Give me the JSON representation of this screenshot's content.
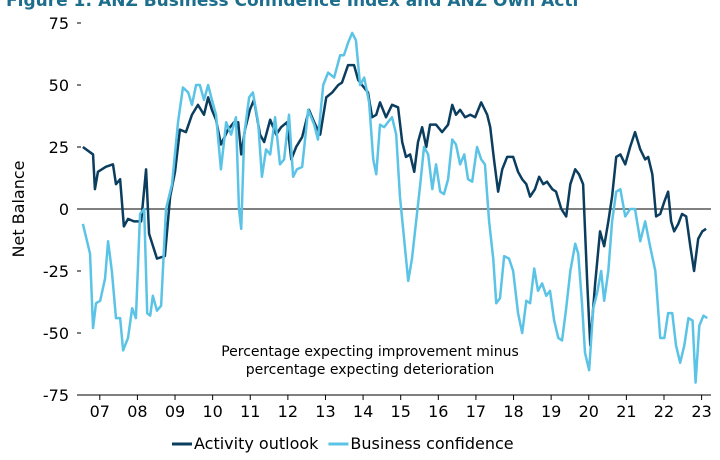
{
  "chart_data": {
    "type": "line",
    "title": "Figure 1: ANZ Business Confidence Index and ANZ Own Acti",
    "ylabel": "Net Balance",
    "annotation": [
      "Percentage expecting improvement minus",
      "percentage expecting deterioration"
    ],
    "xlim": [
      2007,
      2023.75
    ],
    "ylim": [
      -75,
      75
    ],
    "yticks": [
      -75,
      -50,
      -25,
      0,
      25,
      50,
      75
    ],
    "xticks": [
      {
        "value": 2007.5,
        "label": "07"
      },
      {
        "value": 2008.5,
        "label": "08"
      },
      {
        "value": 2009.5,
        "label": "09"
      },
      {
        "value": 2010.5,
        "label": "10"
      },
      {
        "value": 2011.5,
        "label": "11"
      },
      {
        "value": 2012.5,
        "label": "12"
      },
      {
        "value": 2013.5,
        "label": "13"
      },
      {
        "value": 2014.5,
        "label": "14"
      },
      {
        "value": 2015.5,
        "label": "15"
      },
      {
        "value": 2016.5,
        "label": "16"
      },
      {
        "value": 2017.5,
        "label": "17"
      },
      {
        "value": 2018.5,
        "label": "18"
      },
      {
        "value": 2019.5,
        "label": "19"
      },
      {
        "value": 2020.5,
        "label": "20"
      },
      {
        "value": 2021.5,
        "label": "21"
      },
      {
        "value": 2022.5,
        "label": "22"
      },
      {
        "value": 2023.5,
        "label": "23"
      }
    ],
    "legend": "bottom",
    "series": [
      {
        "name": "Activity outlook",
        "color": "#0b3d5e",
        "x": [
          2007.05,
          2007.32,
          2007.37,
          2007.45,
          2007.66,
          2007.85,
          2007.93,
          2008.04,
          2008.14,
          2008.25,
          2008.41,
          2008.6,
          2008.73,
          2008.81,
          2009.02,
          2009.23,
          2009.37,
          2009.5,
          2009.63,
          2009.79,
          2009.95,
          2010.11,
          2010.27,
          2010.38,
          2010.48,
          2010.59,
          2010.72,
          2010.91,
          2011.07,
          2011.18,
          2011.26,
          2011.36,
          2011.49,
          2011.6,
          2011.76,
          2011.87,
          2012.03,
          2012.19,
          2012.32,
          2012.48,
          2012.59,
          2012.72,
          2012.88,
          2013.06,
          2013.2,
          2013.36,
          2013.52,
          2013.68,
          2013.84,
          2013.94,
          2014.1,
          2014.26,
          2014.37,
          2014.47,
          2014.63,
          2014.74,
          2014.85,
          2014.95,
          2015.11,
          2015.27,
          2015.43,
          2015.54,
          2015.64,
          2015.75,
          2015.86,
          2015.96,
          2016.07,
          2016.18,
          2016.28,
          2016.44,
          2016.6,
          2016.76,
          2016.87,
          2016.97,
          2017.08,
          2017.21,
          2017.35,
          2017.48,
          2017.64,
          2017.8,
          2017.88,
          2017.98,
          2018.09,
          2018.2,
          2018.33,
          2018.49,
          2018.62,
          2018.73,
          2018.84,
          2018.94,
          2019.07,
          2019.18,
          2019.29,
          2019.39,
          2019.53,
          2019.63,
          2019.77,
          2019.9,
          2020.01,
          2020.14,
          2020.24,
          2020.35,
          2020.46,
          2020.54,
          2020.67,
          2020.8,
          2020.91,
          2021.02,
          2021.12,
          2021.23,
          2021.34,
          2021.47,
          2021.6,
          2021.73,
          2021.87,
          2022.0,
          2022.08,
          2022.19,
          2022.29,
          2022.4,
          2022.51,
          2022.61,
          2022.69,
          2022.77,
          2022.88,
          2022.98,
          2023.09,
          2023.2,
          2023.3,
          2023.41,
          2023.52,
          2023.62
        ],
        "values": [
          25,
          22,
          8,
          15,
          17,
          18,
          10,
          12,
          -7,
          -4,
          -5,
          -5,
          16,
          -10,
          -20,
          -19,
          5,
          15,
          32,
          31,
          38,
          42,
          38,
          45,
          40,
          36,
          26,
          32,
          35,
          35,
          22,
          32,
          40,
          44,
          30,
          27,
          36,
          30,
          33,
          35,
          20,
          25,
          29,
          40,
          35,
          30,
          45,
          47,
          50,
          51,
          58,
          58,
          52,
          50,
          47,
          37,
          38,
          43,
          37,
          42,
          41,
          27,
          21,
          22,
          15,
          27,
          33,
          25,
          34,
          34,
          31,
          34,
          42,
          38,
          40,
          37,
          38,
          37,
          43,
          38,
          33,
          20,
          7,
          16,
          21,
          21,
          15,
          12,
          10,
          5,
          8,
          13,
          10,
          11,
          8,
          7,
          0,
          -3,
          10,
          16,
          14,
          10,
          -30,
          -55,
          -30,
          -9,
          -15,
          -5,
          5,
          21,
          22,
          18,
          25,
          31,
          24,
          20,
          21,
          14,
          -3,
          -2,
          3,
          7,
          -5,
          -9,
          -6,
          -2,
          -3,
          -15,
          -25,
          -12,
          -9,
          -8
        ]
      },
      {
        "name": "Business confidence",
        "color": "#5bc3e6",
        "x": [
          2007.05,
          2007.24,
          2007.32,
          2007.4,
          2007.51,
          2007.64,
          2007.72,
          2007.82,
          2007.93,
          2008.04,
          2008.12,
          2008.25,
          2008.36,
          2008.46,
          2008.57,
          2008.68,
          2008.76,
          2008.84,
          2008.91,
          2009.02,
          2009.13,
          2009.26,
          2009.42,
          2009.58,
          2009.71,
          2009.85,
          2009.95,
          2010.06,
          2010.16,
          2010.27,
          2010.38,
          2010.48,
          2010.59,
          2010.72,
          2010.86,
          2010.99,
          2011.12,
          2011.2,
          2011.26,
          2011.34,
          2011.47,
          2011.57,
          2011.71,
          2011.81,
          2011.92,
          2012.03,
          2012.16,
          2012.29,
          2012.4,
          2012.53,
          2012.64,
          2012.74,
          2012.88,
          2013.04,
          2013.2,
          2013.3,
          2013.44,
          2013.57,
          2013.73,
          2013.89,
          2013.99,
          2014.1,
          2014.21,
          2014.31,
          2014.42,
          2014.53,
          2014.66,
          2014.77,
          2014.85,
          2014.95,
          2015.06,
          2015.16,
          2015.27,
          2015.38,
          2015.48,
          2015.59,
          2015.7,
          2015.8,
          2015.91,
          2016.02,
          2016.12,
          2016.23,
          2016.34,
          2016.44,
          2016.55,
          2016.65,
          2016.76,
          2016.87,
          2016.97,
          2017.08,
          2017.19,
          2017.29,
          2017.4,
          2017.53,
          2017.64,
          2017.74,
          2017.85,
          2017.96,
          2018.04,
          2018.14,
          2018.25,
          2018.38,
          2018.49,
          2018.62,
          2018.73,
          2018.84,
          2018.94,
          2019.05,
          2019.15,
          2019.26,
          2019.37,
          2019.47,
          2019.58,
          2019.69,
          2019.79,
          2019.9,
          2020.01,
          2020.14,
          2020.22,
          2020.32,
          2020.4,
          2020.51,
          2020.62,
          2020.72,
          2020.83,
          2020.91,
          2021.02,
          2021.12,
          2021.23,
          2021.34,
          2021.47,
          2021.6,
          2021.73,
          2021.87,
          2022.0,
          2022.13,
          2022.27,
          2022.4,
          2022.51,
          2022.61,
          2022.72,
          2022.82,
          2022.93,
          2023.04,
          2023.15,
          2023.26,
          2023.34,
          2023.44,
          2023.55,
          2023.65
        ],
        "values": [
          -6,
          -18,
          -48,
          -38,
          -37,
          -28,
          -13,
          -25,
          -44,
          -44,
          -57,
          -52,
          -40,
          -44,
          -2,
          0,
          -42,
          -43,
          -35,
          -41,
          -39,
          0,
          10,
          35,
          49,
          47,
          42,
          50,
          50,
          44,
          50,
          44,
          38,
          16,
          35,
          30,
          37,
          0,
          -8,
          30,
          45,
          47,
          35,
          13,
          24,
          22,
          37,
          18,
          20,
          38,
          13,
          16,
          17,
          40,
          34,
          28,
          50,
          55,
          53,
          62,
          62,
          67,
          71,
          68,
          50,
          53,
          43,
          20,
          14,
          34,
          33,
          35,
          37,
          30,
          5,
          -12,
          -29,
          -20,
          -5,
          10,
          25,
          22,
          8,
          18,
          7,
          6,
          12,
          28,
          26,
          18,
          22,
          12,
          11,
          25,
          20,
          18,
          -5,
          -20,
          -38,
          -36,
          -19,
          -20,
          -25,
          -42,
          -50,
          -37,
          -38,
          -24,
          -33,
          -30,
          -35,
          -33,
          -45,
          -52,
          -53,
          -40,
          -25,
          -14,
          -18,
          -38,
          -58,
          -65,
          -40,
          -34,
          -25,
          -37,
          -25,
          -5,
          7,
          8,
          -3,
          0,
          0,
          -13,
          -5,
          -15,
          -25,
          -52,
          -52,
          -42,
          -42,
          -55,
          -62,
          -55,
          -44,
          -45,
          -70,
          -47,
          -43,
          -44
        ]
      }
    ]
  }
}
